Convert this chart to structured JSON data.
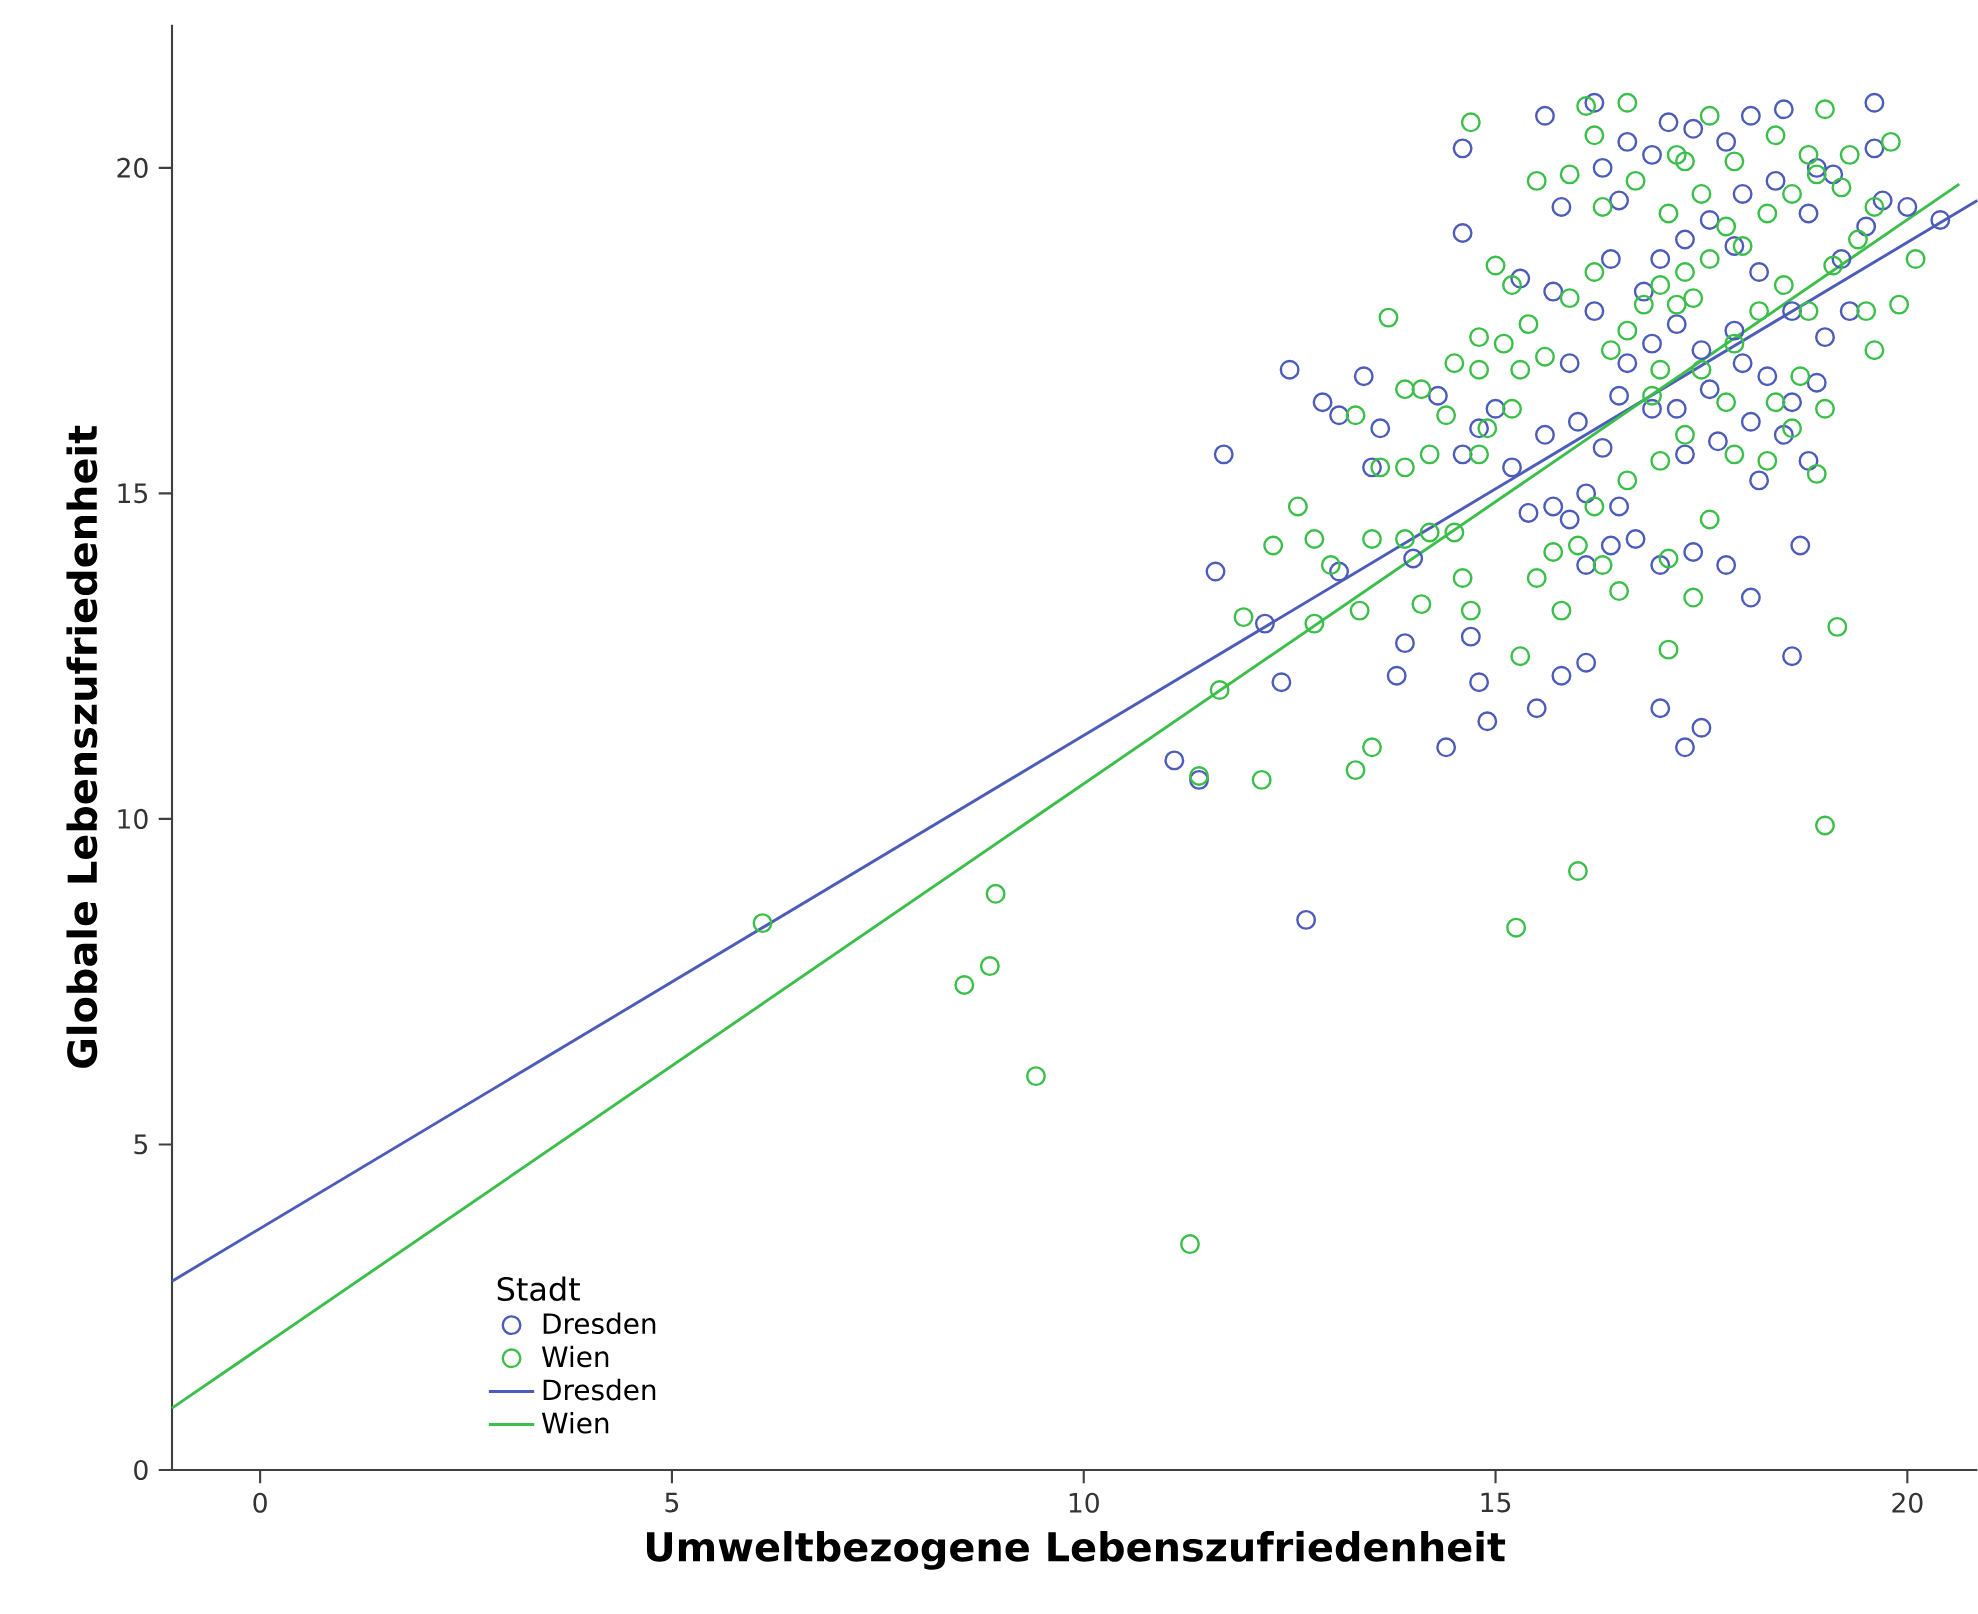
{
  "chart_data": {
    "type": "scatter",
    "xlabel": "Umweltbezogene Lebenszufriedenheit",
    "ylabel": "Globale Lebenszufriedenheit",
    "legend_title": "Stadt",
    "xlim": [
      -1.07,
      20.85
    ],
    "ylim": [
      0,
      22.2
    ],
    "xticks": [
      0,
      5,
      10,
      15,
      20
    ],
    "yticks": [
      0,
      5,
      10,
      15,
      20
    ],
    "grid": false,
    "legend": "bottom left",
    "series": [
      {
        "name": "Dresden",
        "marker": "circle",
        "color": "#4c5cb8",
        "x": [
          12.7,
          11.1,
          11.4,
          11.7,
          11.6,
          12.5,
          12.2,
          12.4,
          12.9,
          13.1,
          13.1,
          13.4,
          13.6,
          13.5,
          13.8,
          13.9,
          14.0,
          14.4,
          14.3,
          14.7,
          14.8,
          14.9,
          14.6,
          14.6,
          15.6,
          15.5,
          15.8,
          16.1,
          17.0,
          17.3,
          17.5,
          18.1,
          18.6,
          18.7,
          19.6,
          19.7,
          20.4,
          15.3,
          15.7,
          15.9,
          16.0,
          16.2,
          16.4,
          16.5,
          16.3,
          16.6,
          16.9,
          17.1,
          17.4,
          17.8,
          18.1,
          18.5,
          18.9,
          18.8,
          19.2,
          19.5,
          19.3,
          19.0,
          18.6,
          18.2,
          17.9,
          17.6,
          17.3,
          17.0,
          16.8,
          17.2,
          17.5,
          17.9,
          18.3,
          18.6,
          18.9,
          18.1,
          17.7,
          17.3,
          16.9,
          16.5,
          16.3,
          16.1,
          16.5,
          16.7,
          17.0,
          17.4,
          17.8,
          18.2,
          18.5,
          18.8,
          16.4,
          16.1,
          15.9,
          15.6,
          15.0,
          14.8,
          14.6,
          15.2,
          15.4,
          15.7,
          19.6,
          20.0,
          19.1,
          18.4,
          18.0,
          16.9,
          16.6,
          17.2,
          17.6,
          18.0,
          15.8,
          16.2
        ],
        "values": [
          8.45,
          10.9,
          10.6,
          15.6,
          13.8,
          16.9,
          13.0,
          12.1,
          16.4,
          16.2,
          13.8,
          16.8,
          16.0,
          15.4,
          12.2,
          12.7,
          14.0,
          11.1,
          16.5,
          12.8,
          12.1,
          11.5,
          19.0,
          20.3,
          20.8,
          11.7,
          12.2,
          12.4,
          11.7,
          11.1,
          11.4,
          13.4,
          12.5,
          14.2,
          21.0,
          19.5,
          19.2,
          18.3,
          18.1,
          17.0,
          16.1,
          17.8,
          18.6,
          19.5,
          20.0,
          20.4,
          20.2,
          20.7,
          20.6,
          20.4,
          20.8,
          20.9,
          20.0,
          19.3,
          18.6,
          19.1,
          17.8,
          17.4,
          17.8,
          18.4,
          18.8,
          19.2,
          18.9,
          18.6,
          18.1,
          17.6,
          17.2,
          17.5,
          16.8,
          16.4,
          16.7,
          16.1,
          15.8,
          15.6,
          16.3,
          16.5,
          15.7,
          15.0,
          14.8,
          14.3,
          13.9,
          14.1,
          13.9,
          15.2,
          15.9,
          15.5,
          14.2,
          13.9,
          14.6,
          15.9,
          16.3,
          16.0,
          15.6,
          15.4,
          14.7,
          14.8,
          20.3,
          19.4,
          19.9,
          19.8,
          19.6,
          17.3,
          17.0,
          16.3,
          16.6,
          17.0,
          19.4,
          21.0
        ]
      },
      {
        "name": "Wien",
        "marker": "circle",
        "color": "#3cbf4a",
        "x": [
          6.1,
          8.55,
          8.86,
          8.93,
          9.42,
          11.29,
          11.4,
          11.65,
          12.16,
          11.94,
          12.3,
          12.8,
          13.3,
          13.5,
          13.35,
          13.7,
          14.1,
          14.7,
          15.3,
          15.25,
          16.0,
          17.1,
          19.0,
          19.15,
          14.7,
          16.1,
          17.6,
          19.0,
          19.8,
          20.1,
          19.6,
          19.9,
          15.0,
          15.2,
          15.4,
          15.6,
          15.9,
          16.2,
          16.4,
          16.6,
          16.8,
          17.0,
          17.2,
          17.4,
          17.3,
          17.6,
          17.8,
          18.0,
          18.3,
          18.6,
          18.9,
          19.2,
          19.6,
          17.1,
          17.5,
          17.9,
          17.2,
          16.7,
          16.3,
          15.9,
          15.5,
          16.2,
          16.6,
          17.3,
          18.4,
          18.8,
          19.3,
          17.0,
          16.9,
          17.5,
          17.9,
          18.2,
          18.5,
          18.8,
          19.1,
          19.4,
          18.4,
          18.7,
          17.8,
          17.3,
          17.0,
          16.6,
          16.2,
          16.0,
          15.7,
          15.5,
          15.8,
          16.3,
          16.5,
          17.4,
          17.6,
          17.1,
          17.9,
          18.3,
          18.9,
          19.0,
          18.6,
          19.5,
          15.2,
          14.9,
          14.8,
          14.4,
          14.2,
          13.9,
          13.6,
          13.3,
          13.9,
          14.1,
          14.5,
          14.8,
          15.1,
          15.3,
          14.8,
          14.5,
          14.2,
          13.9,
          14.6,
          12.8,
          13.0,
          12.6,
          13.5
        ],
        "values": [
          8.4,
          7.45,
          7.74,
          8.85,
          6.05,
          3.47,
          10.66,
          11.98,
          10.6,
          13.1,
          14.2,
          13.0,
          10.75,
          11.1,
          13.2,
          17.7,
          13.3,
          13.2,
          12.5,
          8.33,
          9.2,
          12.6,
          9.9,
          12.95,
          20.7,
          20.95,
          20.8,
          20.9,
          20.4,
          18.6,
          17.2,
          17.9,
          18.5,
          18.2,
          17.6,
          17.1,
          18.0,
          18.4,
          17.2,
          17.5,
          17.9,
          18.2,
          17.9,
          18.0,
          18.4,
          18.6,
          19.1,
          18.8,
          19.3,
          19.6,
          19.9,
          19.7,
          19.4,
          19.3,
          19.6,
          20.1,
          20.2,
          19.8,
          19.4,
          19.9,
          19.8,
          20.5,
          21.0,
          20.1,
          20.5,
          20.2,
          20.2,
          16.9,
          16.5,
          16.9,
          17.3,
          17.8,
          18.2,
          17.8,
          18.5,
          18.9,
          16.4,
          16.8,
          16.4,
          15.9,
          15.5,
          15.2,
          14.8,
          14.2,
          14.1,
          13.7,
          13.2,
          13.9,
          13.5,
          13.4,
          14.6,
          14.0,
          15.6,
          15.5,
          15.3,
          16.3,
          16.0,
          17.8,
          16.3,
          16.0,
          16.9,
          16.2,
          15.6,
          15.4,
          15.4,
          16.2,
          16.6,
          16.6,
          17.0,
          17.4,
          17.3,
          16.9,
          15.6,
          14.4,
          14.4,
          14.3,
          13.7,
          14.3,
          13.9,
          14.8,
          14.3
        ]
      },
      {
        "name": "Dresden",
        "type": "line",
        "marker": "none",
        "color": "#4c5cb8",
        "x": [
          -1.07,
          20.85
        ],
        "values": [
          2.9,
          19.5
        ]
      },
      {
        "name": "Wien",
        "type": "line",
        "marker": "none",
        "color": "#3cbf4a",
        "x": [
          -1.07,
          20.63
        ],
        "values": [
          0.95,
          19.75
        ]
      }
    ]
  }
}
